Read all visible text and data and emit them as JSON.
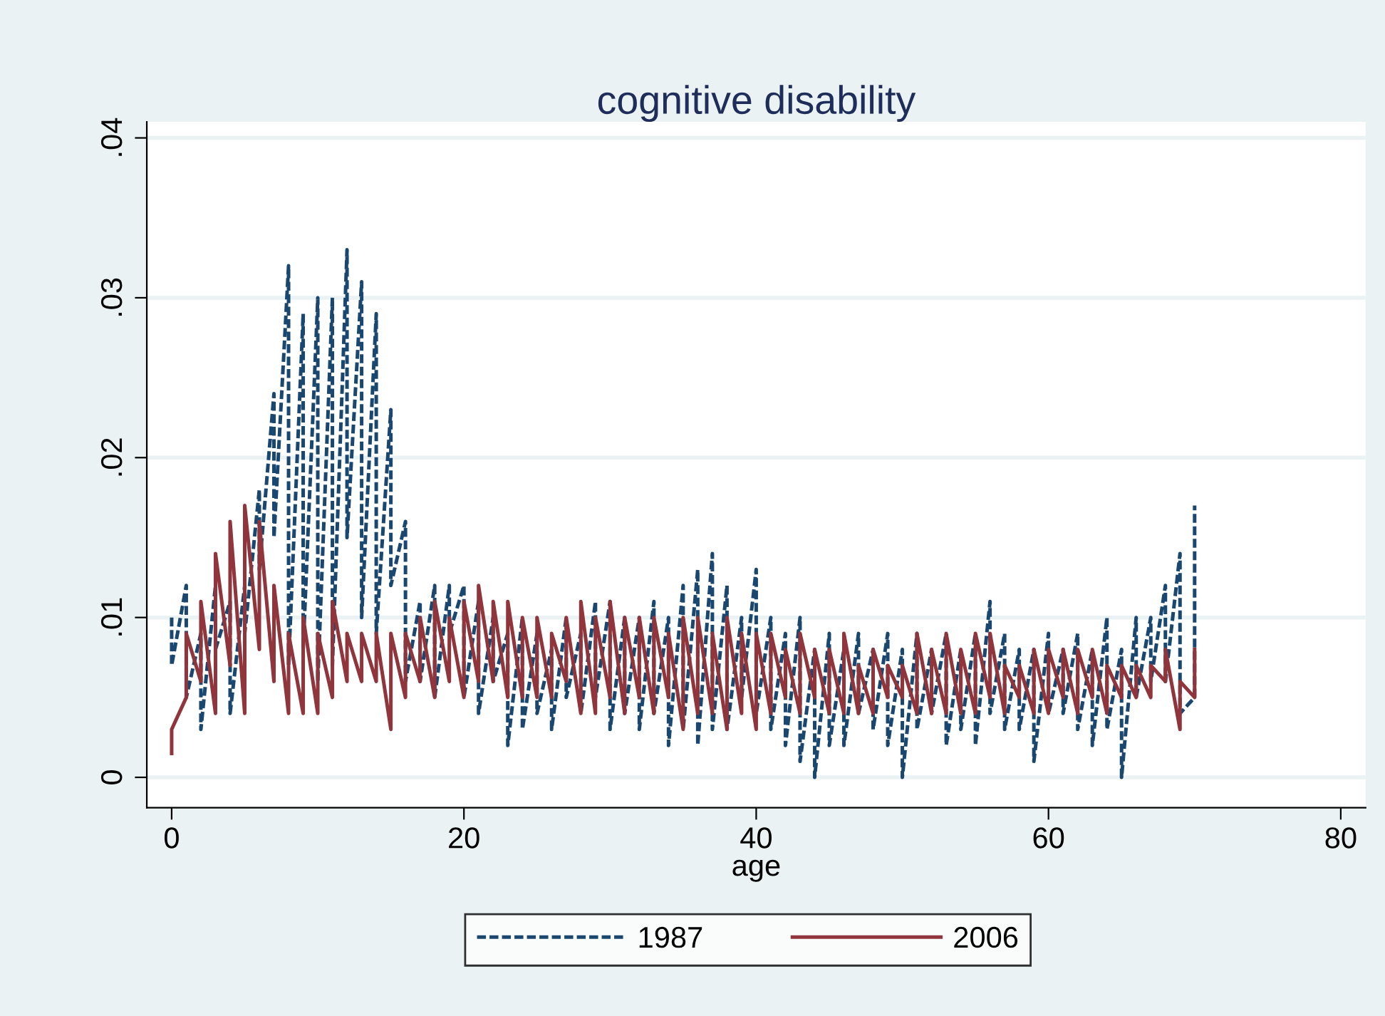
{
  "chart_data": {
    "type": "line",
    "title": "cognitive disability",
    "xlabel": "age",
    "x": [
      0,
      0,
      1,
      1,
      2,
      2,
      3,
      3,
      4,
      4,
      5,
      5,
      6,
      6,
      7,
      7,
      8,
      8,
      9,
      9,
      10,
      10,
      11,
      11,
      12,
      12,
      13,
      13,
      14,
      14,
      15,
      15,
      16,
      16,
      17,
      17,
      18,
      18,
      19,
      19,
      20,
      20,
      21,
      21,
      22,
      22,
      23,
      23,
      24,
      24,
      25,
      25,
      26,
      26,
      27,
      27,
      28,
      28,
      29,
      29,
      30,
      30,
      31,
      31,
      32,
      32,
      33,
      33,
      34,
      34,
      35,
      35,
      36,
      36,
      37,
      37,
      38,
      38,
      39,
      39,
      40,
      40,
      41,
      41,
      42,
      42,
      43,
      43,
      44,
      44,
      45,
      45,
      46,
      46,
      47,
      47,
      48,
      48,
      49,
      49,
      50,
      50,
      51,
      51,
      52,
      52,
      53,
      53,
      54,
      54,
      55,
      55,
      56,
      56,
      57,
      57,
      58,
      58,
      59,
      59,
      60,
      60,
      61,
      61,
      62,
      62,
      63,
      63,
      64,
      64,
      65,
      65,
      66,
      66,
      67,
      67,
      68,
      68,
      69,
      69,
      70,
      70
    ],
    "series": [
      {
        "name": "1987",
        "color": "#1a476f",
        "line_style": "dashed",
        "values": [
          0.01,
          0.007,
          0.012,
          0.005,
          0.009,
          0.003,
          0.012,
          0.008,
          0.011,
          0.004,
          0.012,
          0.009,
          0.018,
          0.013,
          0.024,
          0.015,
          0.032,
          0.007,
          0.029,
          0.008,
          0.03,
          0.006,
          0.03,
          0.007,
          0.033,
          0.015,
          0.031,
          0.01,
          0.029,
          0.009,
          0.023,
          0.012,
          0.016,
          0.006,
          0.011,
          0.006,
          0.012,
          0.005,
          0.012,
          0.009,
          0.012,
          0.005,
          0.011,
          0.004,
          0.01,
          0.006,
          0.009,
          0.002,
          0.01,
          0.003,
          0.009,
          0.004,
          0.008,
          0.003,
          0.01,
          0.005,
          0.009,
          0.004,
          0.011,
          0.005,
          0.011,
          0.003,
          0.01,
          0.004,
          0.01,
          0.003,
          0.011,
          0.004,
          0.01,
          0.002,
          0.012,
          0.003,
          0.013,
          0.002,
          0.014,
          0.003,
          0.012,
          0.003,
          0.01,
          0.005,
          0.013,
          0.004,
          0.01,
          0.003,
          0.009,
          0.002,
          0.01,
          0.001,
          0.008,
          0.0,
          0.009,
          0.002,
          0.008,
          0.002,
          0.009,
          0.004,
          0.008,
          0.003,
          0.009,
          0.002,
          0.008,
          0.0,
          0.009,
          0.003,
          0.008,
          0.004,
          0.009,
          0.002,
          0.008,
          0.003,
          0.009,
          0.002,
          0.011,
          0.004,
          0.009,
          0.003,
          0.008,
          0.003,
          0.008,
          0.001,
          0.009,
          0.004,
          0.008,
          0.004,
          0.009,
          0.003,
          0.008,
          0.002,
          0.01,
          0.003,
          0.008,
          0.0,
          0.01,
          0.005,
          0.01,
          0.006,
          0.012,
          0.006,
          0.014,
          0.004,
          0.005,
          0.017
        ]
      },
      {
        "name": "2006",
        "color": "#90353b",
        "line_style": "solid",
        "values": [
          0.0015,
          0.003,
          0.005,
          0.009,
          0.006,
          0.011,
          0.004,
          0.014,
          0.007,
          0.016,
          0.004,
          0.017,
          0.008,
          0.016,
          0.006,
          0.012,
          0.004,
          0.009,
          0.004,
          0.01,
          0.004,
          0.009,
          0.005,
          0.011,
          0.006,
          0.009,
          0.006,
          0.009,
          0.006,
          0.009,
          0.003,
          0.009,
          0.005,
          0.009,
          0.006,
          0.01,
          0.005,
          0.011,
          0.006,
          0.01,
          0.005,
          0.011,
          0.006,
          0.012,
          0.006,
          0.011,
          0.005,
          0.011,
          0.005,
          0.01,
          0.005,
          0.01,
          0.005,
          0.009,
          0.006,
          0.01,
          0.004,
          0.011,
          0.004,
          0.01,
          0.005,
          0.011,
          0.004,
          0.01,
          0.005,
          0.01,
          0.004,
          0.01,
          0.005,
          0.009,
          0.003,
          0.01,
          0.004,
          0.01,
          0.004,
          0.009,
          0.003,
          0.01,
          0.004,
          0.009,
          0.003,
          0.009,
          0.004,
          0.009,
          0.005,
          0.008,
          0.004,
          0.009,
          0.005,
          0.008,
          0.004,
          0.008,
          0.004,
          0.009,
          0.004,
          0.007,
          0.004,
          0.008,
          0.005,
          0.007,
          0.005,
          0.007,
          0.004,
          0.009,
          0.004,
          0.008,
          0.004,
          0.009,
          0.004,
          0.008,
          0.004,
          0.009,
          0.005,
          0.009,
          0.004,
          0.007,
          0.005,
          0.007,
          0.004,
          0.008,
          0.004,
          0.008,
          0.005,
          0.008,
          0.004,
          0.008,
          0.005,
          0.008,
          0.004,
          0.007,
          0.005,
          0.007,
          0.005,
          0.007,
          0.005,
          0.007,
          0.006,
          0.008,
          0.003,
          0.006,
          0.005,
          0.008
        ]
      }
    ],
    "xlim": [
      -1.7,
      81.7
    ],
    "xticks": [
      0,
      20,
      40,
      60,
      80
    ],
    "ylim": [
      -0.0019,
      0.041
    ],
    "yticks": [
      {
        "value": 0,
        "label": "0"
      },
      {
        "value": 0.01,
        "label": ".01"
      },
      {
        "value": 0.02,
        "label": ".02"
      },
      {
        "value": 0.03,
        "label": ".03"
      },
      {
        "value": 0.04,
        "label": ".04"
      }
    ],
    "grid": "y",
    "legend": "bottom"
  }
}
